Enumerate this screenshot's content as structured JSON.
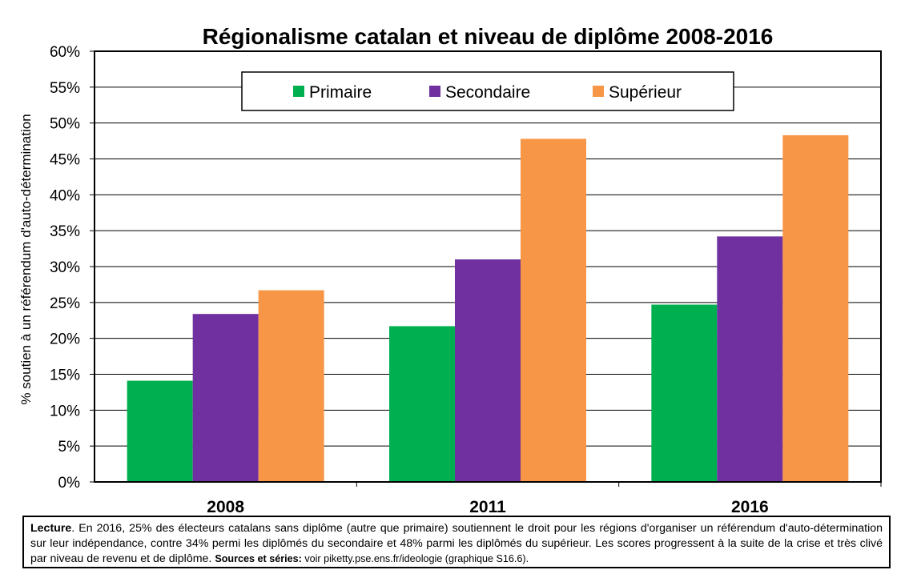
{
  "chart_data": {
    "type": "bar",
    "title": "Régionalisme catalan et niveau de diplôme 2008-2016",
    "xlabel": "",
    "ylabel": "% soutien à un référendum d'auto-détermination",
    "categories": [
      "2008",
      "2011",
      "2016"
    ],
    "series": [
      {
        "name": "Primaire",
        "color": "#00b050",
        "values": [
          14.1,
          21.7,
          24.7
        ]
      },
      {
        "name": "Secondaire",
        "color": "#7030a0",
        "values": [
          23.4,
          31.0,
          34.2
        ]
      },
      {
        "name": "Supérieur",
        "color": "#f79646",
        "values": [
          26.7,
          47.8,
          48.3
        ]
      }
    ],
    "ylim": [
      0,
      60
    ],
    "yticks": [
      0,
      5,
      10,
      15,
      20,
      25,
      30,
      35,
      40,
      45,
      50,
      55,
      60
    ],
    "ytick_suffix": "%",
    "grid": true,
    "legend_position": "top-center"
  },
  "caption": {
    "lead": "Lecture",
    "text": ". En 2016, 25% des électeurs catalans sans diplôme (autre que primaire) soutiennent le droit pour les régions d'organiser un référendum d'auto-détermination sur leur indépendance, contre 34% permi les diplômés du secondaire et 48% parmi les diplômés du supérieur. Les scores progressent à la suite de la crise et très clivé par niveau de revenu et de diplôme. ",
    "sources_label": "Sources et séries:",
    "sources_text": " voir piketty.pse.ens.fr/ideologie (graphique S16.6)."
  }
}
